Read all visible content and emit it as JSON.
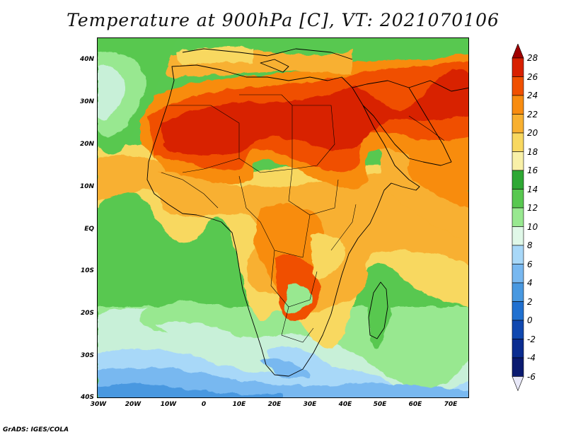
{
  "title": "Temperature at 900hPa [C], VT: 2021070106",
  "footer": "GrADS: IGES/COLA",
  "map": {
    "lon_ticks": [
      "30W",
      "20W",
      "10W",
      "0",
      "10E",
      "20E",
      "30E",
      "40E",
      "50E",
      "60E",
      "70E"
    ],
    "lat_ticks": [
      "40N",
      "30N",
      "20N",
      "10N",
      "EQ",
      "10S",
      "20S",
      "30S",
      "40S"
    ],
    "lon_range": [
      -30,
      75
    ],
    "lat_range": [
      -40,
      45
    ],
    "field": "temperature",
    "units": "C",
    "level": "900hPa"
  },
  "colorbar": {
    "labels": [
      "28",
      "26",
      "24",
      "22",
      "20",
      "18",
      "16",
      "14",
      "12",
      "10",
      "8",
      "6",
      "4",
      "2",
      "0",
      "-2",
      "-4",
      "-6"
    ],
    "colors": [
      "#a00000",
      "#d82000",
      "#f05000",
      "#f88c10",
      "#f8b030",
      "#f8d860",
      "#f8f0a8",
      "#2ea834",
      "#58c850",
      "#98e890",
      "#e0f8e8",
      "#a8d8f8",
      "#78b8f0",
      "#4898e0",
      "#2070d0",
      "#1048b0",
      "#0a2c90",
      "#0a1a70",
      "#e8e8f8"
    ]
  }
}
